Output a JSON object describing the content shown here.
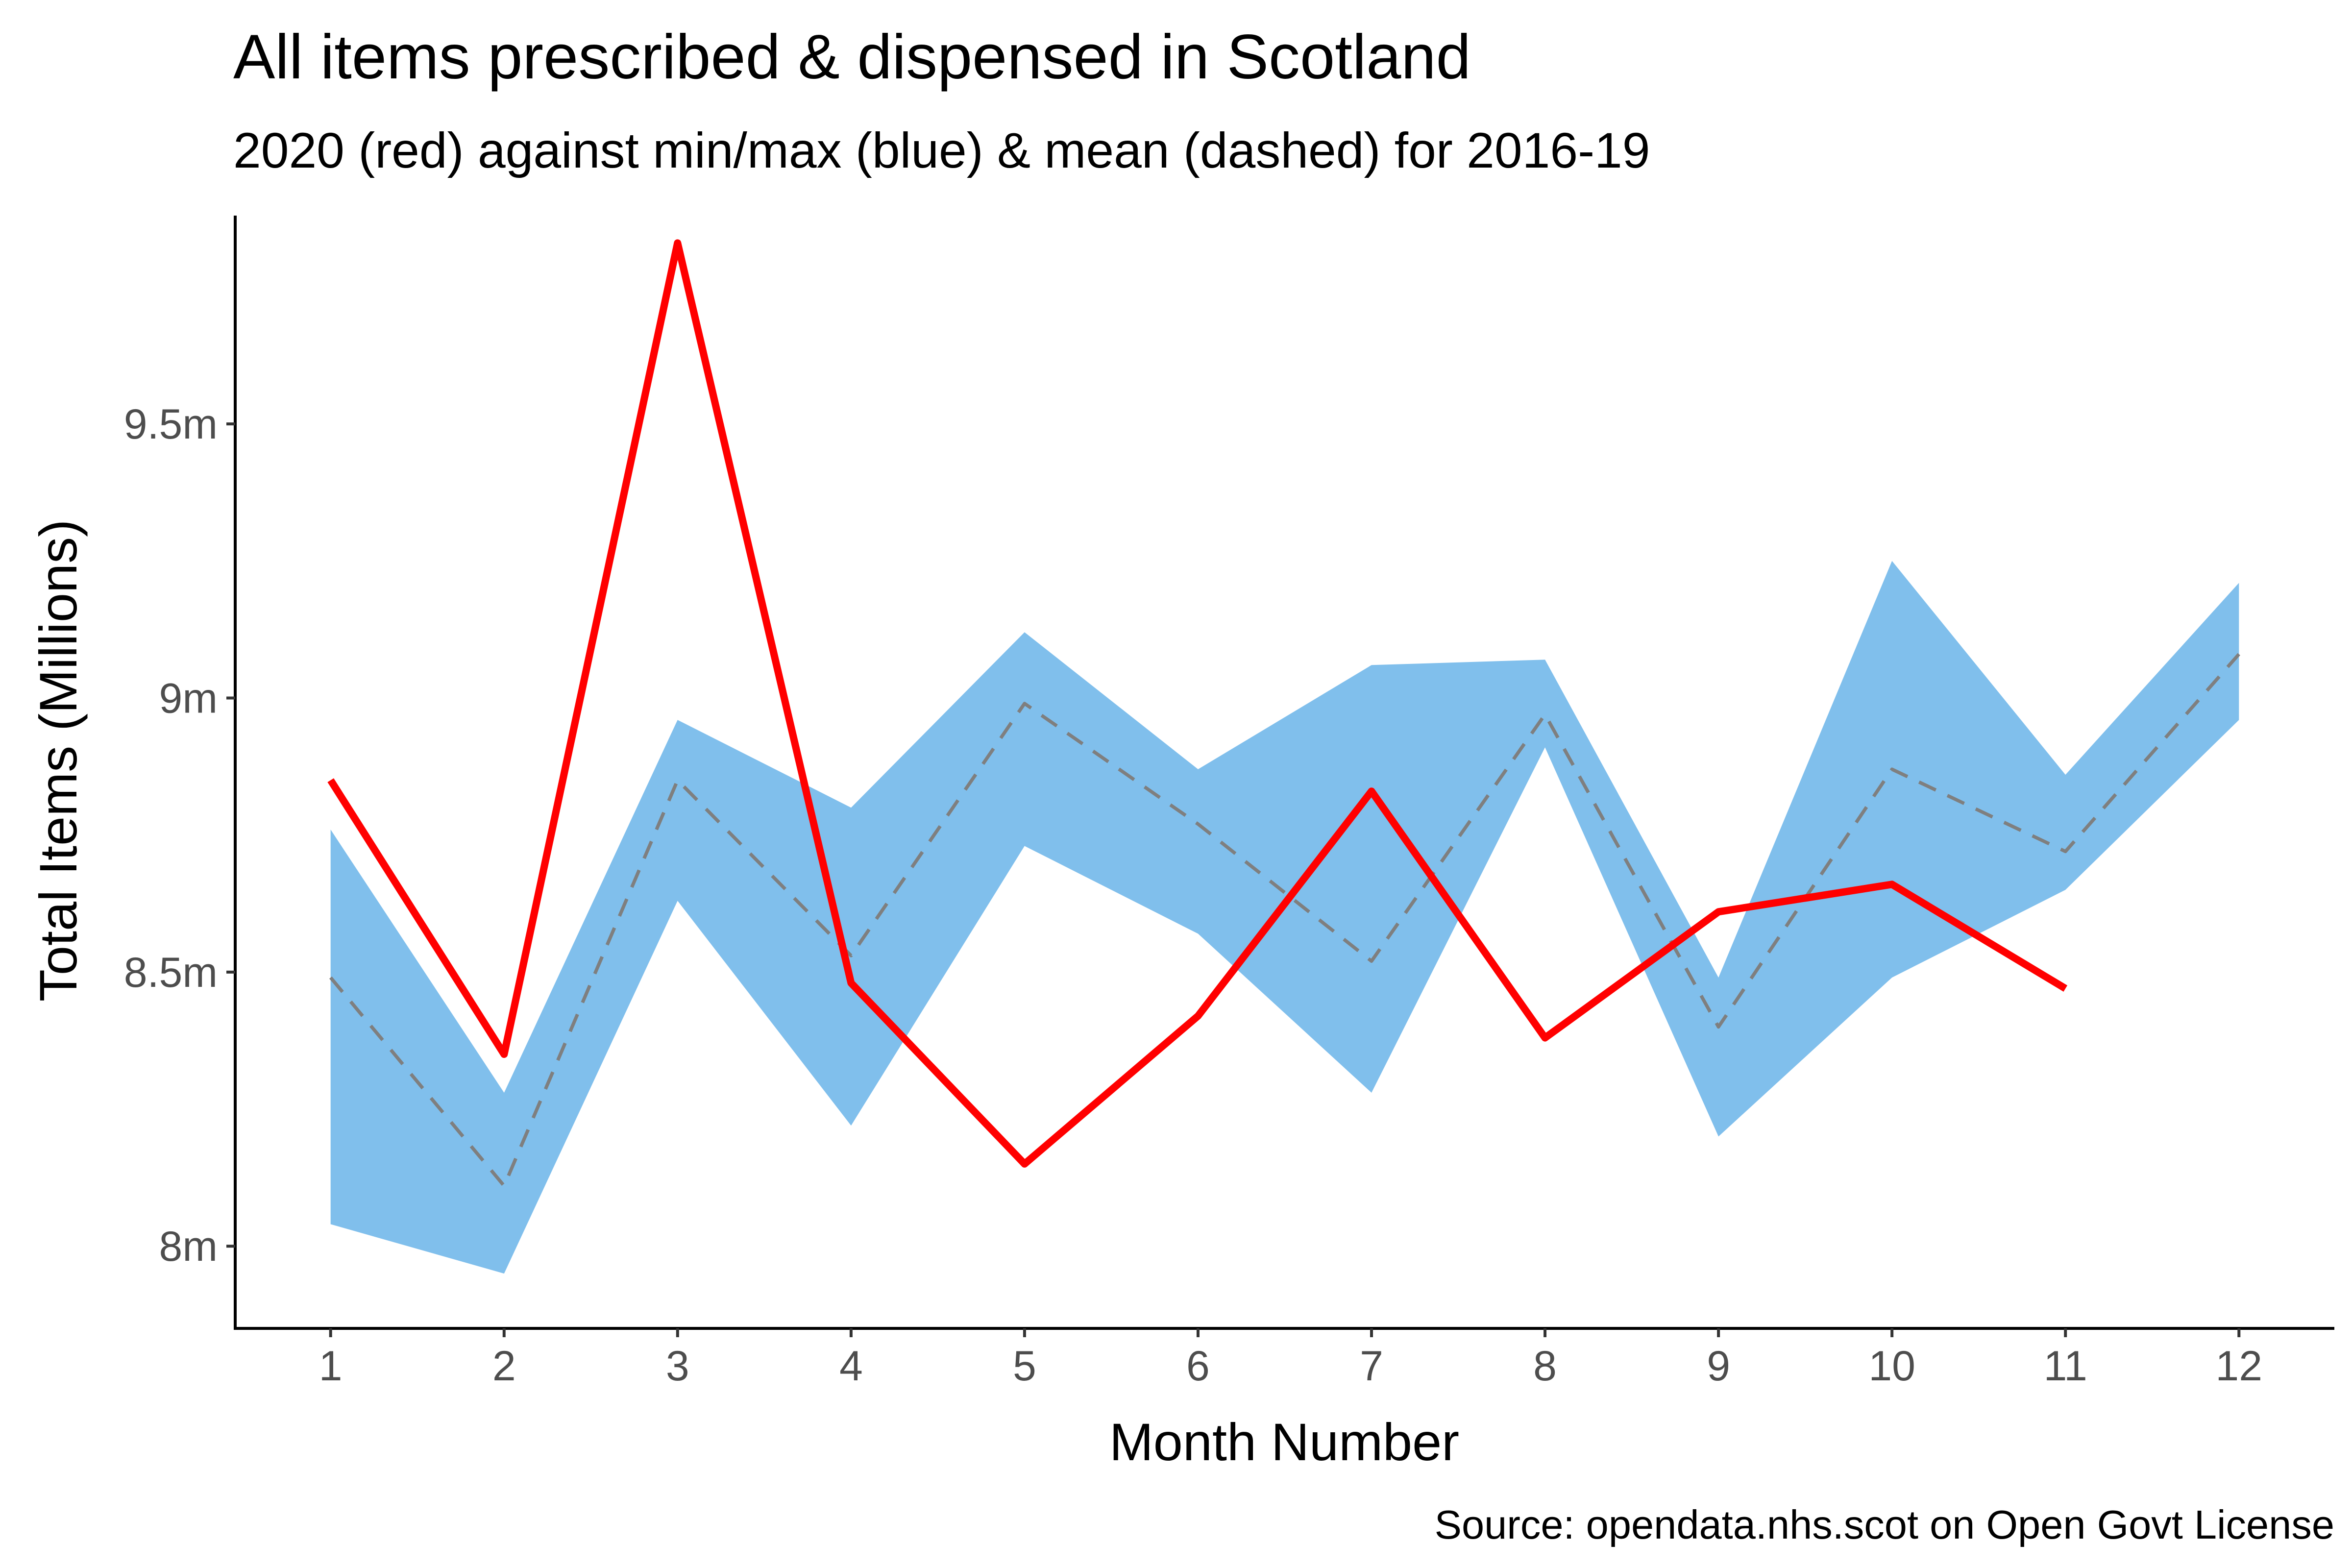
{
  "chart_data": {
    "type": "line",
    "title": "All items prescribed & dispensed in Scotland",
    "subtitle": "2020 (red) against min/max (blue) & mean (dashed) for 2016-19",
    "caption": "Source: opendata.nhs.scot on Open Govt License",
    "xlabel": "Month Number",
    "ylabel": "Total Items (Millions)",
    "x": [
      1,
      2,
      3,
      4,
      5,
      6,
      7,
      8,
      9,
      10,
      11,
      12
    ],
    "x_tick_labels": [
      "1",
      "2",
      "3",
      "4",
      "5",
      "6",
      "7",
      "8",
      "9",
      "10",
      "11",
      "12"
    ],
    "y_ticks": [
      8.0,
      8.5,
      9.0,
      9.5
    ],
    "y_tick_labels": [
      "8m",
      "8.5m",
      "9m",
      "9.5m"
    ],
    "ylim": [
      7.85,
      9.88
    ],
    "xlim": [
      0.45,
      12.55
    ],
    "grid": false,
    "legend": "none",
    "band": {
      "min": [
        8.04,
        7.95,
        8.63,
        8.22,
        8.73,
        8.57,
        8.28,
        8.91,
        8.2,
        8.49,
        8.65,
        8.96
      ],
      "max": [
        8.76,
        8.28,
        8.96,
        8.8,
        9.12,
        8.87,
        9.06,
        9.07,
        8.49,
        9.25,
        8.86,
        9.21
      ],
      "color": "#80BFEC"
    },
    "series": [
      {
        "values": [
          8.49,
          8.11,
          8.85,
          8.53,
          8.99,
          8.77,
          8.52,
          8.97,
          8.4,
          8.87,
          8.72,
          9.08
        ],
        "color": "#7F7F7F",
        "dash": "dashed"
      },
      {
        "values": [
          8.85,
          8.35,
          9.83,
          8.48,
          8.15,
          8.42,
          8.83,
          8.38,
          8.61,
          8.66,
          8.47,
          null
        ],
        "color": "#FF0000",
        "dash": "solid"
      }
    ]
  }
}
